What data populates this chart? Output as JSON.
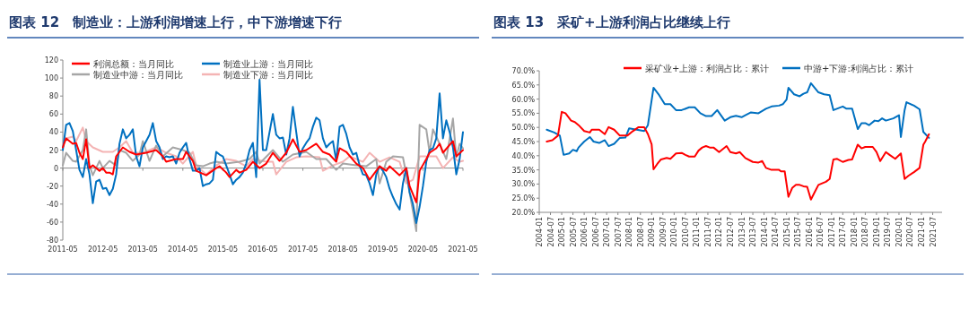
{
  "chart_data": [
    {
      "type": "line",
      "title": "图表 12　制造业：上游利润增速上行，中下游增速下行",
      "legend": "top",
      "xlim": [
        "2011-05",
        "2021-05"
      ],
      "xticks": [
        "2011-05",
        "2012-05",
        "2013-05",
        "2014-05",
        "2015-05",
        "2016-05",
        "2017-05",
        "2018-05",
        "2019-05",
        "2020-05",
        "2021-05"
      ],
      "ylim": [
        -80,
        120
      ],
      "yticks": [
        -80,
        -60,
        -40,
        -20,
        0,
        20,
        40,
        60,
        80,
        100,
        120
      ],
      "series": [
        {
          "name": "利润总额：当月同比",
          "color": "#ff0000",
          "x": [
            "2011-05",
            "2011-06",
            "2011-08",
            "2011-09",
            "2011-10",
            "2011-11",
            "2011-12",
            "2012-01",
            "2012-02",
            "2012-04",
            "2012-05",
            "2012-06",
            "2012-07",
            "2012-08",
            "2012-09",
            "2012-11",
            "2013-01",
            "2013-03",
            "2013-06",
            "2013-09",
            "2013-11",
            "2013-12",
            "2014-03",
            "2014-05",
            "2014-06",
            "2014-08",
            "2014-09",
            "2014-12",
            "2015-03",
            "2015-04",
            "2015-06",
            "2015-07",
            "2015-09",
            "2015-10",
            "2015-12",
            "2016-02",
            "2016-04",
            "2016-06",
            "2016-08",
            "2016-10",
            "2016-12",
            "2017-02",
            "2017-04",
            "2017-06",
            "2017-09",
            "2017-11",
            "2018-01",
            "2018-03",
            "2018-04",
            "2018-06",
            "2018-09",
            "2018-11",
            "2019-01",
            "2019-04",
            "2019-06",
            "2019-07",
            "2019-10",
            "2019-12",
            "2020-01",
            "2020-03",
            "2020-04",
            "2020-06",
            "2020-07",
            "2020-09",
            "2020-10",
            "2020-11",
            "2021-02",
            "2021-03",
            "2021-05"
          ],
          "values": [
            23,
            33,
            27,
            28,
            17,
            10,
            32,
            0,
            3,
            -3,
            0,
            -5,
            -5,
            -7,
            13,
            23,
            18,
            15,
            17,
            20,
            13,
            7,
            10,
            10,
            18,
            8,
            -3,
            -8,
            0,
            2,
            -5,
            -10,
            -2,
            -5,
            -2,
            7,
            0,
            5,
            17,
            8,
            17,
            32,
            18,
            20,
            27,
            18,
            15,
            7,
            22,
            18,
            5,
            0,
            -13,
            2,
            -3,
            2,
            -8,
            0,
            -20,
            -38,
            -3,
            10,
            17,
            22,
            27,
            17,
            30,
            13,
            20
          ]
        },
        {
          "name": "制造业上游：当月同比",
          "color": "#0070c0",
          "x": [
            "2011-05",
            "2011-06",
            "2011-07",
            "2011-08",
            "2011-09",
            "2011-10",
            "2011-11",
            "2011-12",
            "2012-01",
            "2012-02",
            "2012-03",
            "2012-04",
            "2012-05",
            "2012-06",
            "2012-07",
            "2012-08",
            "2012-09",
            "2012-10",
            "2012-11",
            "2012-12",
            "2013-01",
            "2013-02",
            "2013-03",
            "2013-04",
            "2013-05",
            "2013-06",
            "2013-07",
            "2013-08",
            "2013-09",
            "2013-10",
            "2013-11",
            "2013-12",
            "2014-01",
            "2014-02",
            "2014-03",
            "2014-04",
            "2014-05",
            "2014-06",
            "2014-07",
            "2014-08",
            "2014-09",
            "2014-10",
            "2014-11",
            "2014-12",
            "2015-01",
            "2015-02",
            "2015-03",
            "2015-04",
            "2015-05",
            "2015-06",
            "2015-07",
            "2015-08",
            "2015-09",
            "2015-10",
            "2015-11",
            "2015-12",
            "2016-01",
            "2016-02",
            "2016-03",
            "2016-04",
            "2016-05",
            "2016-06",
            "2016-07",
            "2016-08",
            "2016-09",
            "2016-10",
            "2016-11",
            "2016-12",
            "2017-01",
            "2017-02",
            "2017-03",
            "2017-04",
            "2017-05",
            "2017-06",
            "2017-07",
            "2017-08",
            "2017-09",
            "2017-10",
            "2017-11",
            "2017-12",
            "2018-01",
            "2018-02",
            "2018-03",
            "2018-04",
            "2018-05",
            "2018-06",
            "2018-07",
            "2018-08",
            "2018-09",
            "2018-10",
            "2018-11",
            "2018-12",
            "2019-01",
            "2019-02",
            "2019-03",
            "2019-04",
            "2019-05",
            "2019-06",
            "2019-07",
            "2019-08",
            "2019-09",
            "2019-10",
            "2019-11",
            "2019-12",
            "2020-01",
            "2020-02",
            "2020-03",
            "2020-04",
            "2020-05",
            "2020-06",
            "2020-07",
            "2020-08",
            "2020-09",
            "2020-10",
            "2020-11",
            "2020-12",
            "2021-01",
            "2021-02",
            "2021-03",
            "2021-04",
            "2021-05"
          ],
          "values": [
            20,
            48,
            50,
            41,
            20,
            -2,
            -10,
            10,
            -7,
            -39,
            -15,
            -13,
            -23,
            -22,
            -30,
            -23,
            -7,
            27,
            43,
            33,
            37,
            43,
            13,
            2,
            23,
            30,
            37,
            50,
            30,
            23,
            10,
            13,
            12,
            13,
            5,
            17,
            23,
            28,
            10,
            -3,
            -3,
            0,
            -20,
            -18,
            -17,
            -13,
            18,
            15,
            13,
            3,
            -7,
            -18,
            -13,
            -10,
            -5,
            5,
            20,
            28,
            -10,
            98,
            20,
            20,
            40,
            60,
            37,
            33,
            34,
            15,
            33,
            68,
            40,
            13,
            22,
            28,
            33,
            46,
            56,
            53,
            33,
            23,
            27,
            30,
            8,
            46,
            48,
            38,
            23,
            15,
            17,
            3,
            -7,
            -8,
            -17,
            -30,
            -7,
            2,
            -3,
            -10,
            -23,
            -32,
            -40,
            -46,
            -17,
            0,
            -27,
            -40,
            -61,
            -43,
            -20,
            7,
            20,
            22,
            33,
            83,
            33,
            53,
            40,
            23,
            -7,
            10,
            40
          ]
        },
        {
          "name": "制造业中游：当月同比",
          "color": "#a6a6a6",
          "x": [
            "2011-05",
            "2011-06",
            "2011-08",
            "2011-09",
            "2011-11",
            "2011-12",
            "2012-01",
            "2012-02",
            "2012-04",
            "2012-05",
            "2012-07",
            "2012-09",
            "2012-10",
            "2012-12",
            "2013-02",
            "2013-04",
            "2013-05",
            "2013-07",
            "2013-09",
            "2013-11",
            "2014-02",
            "2014-05",
            "2014-07",
            "2014-09",
            "2014-11",
            "2015-01",
            "2015-03",
            "2015-06",
            "2015-10",
            "2016-01",
            "2016-03",
            "2016-04",
            "2016-08",
            "2016-11",
            "2017-02",
            "2017-06",
            "2017-09",
            "2017-12",
            "2018-03",
            "2018-05",
            "2018-09",
            "2018-12",
            "2019-03",
            "2019-04",
            "2019-06",
            "2019-08",
            "2019-11",
            "2019-12",
            "2020-02",
            "2020-03",
            "2020-04",
            "2020-06",
            "2020-07",
            "2020-08",
            "2020-10",
            "2020-12",
            "2021-02",
            "2021-03",
            "2021-04",
            "2021-05"
          ],
          "values": [
            3,
            17,
            8,
            7,
            20,
            43,
            3,
            -8,
            8,
            0,
            8,
            3,
            20,
            17,
            8,
            15,
            30,
            8,
            25,
            13,
            23,
            20,
            17,
            3,
            2,
            5,
            7,
            5,
            7,
            10,
            18,
            5,
            20,
            7,
            15,
            18,
            10,
            10,
            -2,
            5,
            3,
            2,
            10,
            -17,
            7,
            13,
            12,
            -7,
            -48,
            -70,
            48,
            43,
            17,
            43,
            27,
            10,
            55,
            12,
            27,
            22
          ]
        },
        {
          "name": "制造业下游：当月同比",
          "color": "#f4b4b4",
          "x": [
            "2011-05",
            "2011-06",
            "2011-08",
            "2011-09",
            "2011-11",
            "2011-12",
            "2012-02",
            "2012-05",
            "2012-06",
            "2012-08",
            "2012-10",
            "2012-12",
            "2013-02",
            "2013-05",
            "2013-09",
            "2013-12",
            "2014-03",
            "2014-05",
            "2014-08",
            "2014-09",
            "2014-12",
            "2015-03",
            "2015-06",
            "2015-09",
            "2015-12",
            "2016-02",
            "2016-06",
            "2016-08",
            "2016-09",
            "2016-12",
            "2017-03",
            "2017-06",
            "2017-10",
            "2017-11",
            "2018-02",
            "2018-05",
            "2018-07",
            "2018-11",
            "2019-01",
            "2019-04",
            "2019-07",
            "2019-10",
            "2019-12",
            "2020-02",
            "2020-04",
            "2020-07",
            "2020-09",
            "2020-11",
            "2021-02",
            "2021-04",
            "2021-05"
          ],
          "values": [
            27,
            33,
            35,
            30,
            45,
            30,
            23,
            18,
            18,
            18,
            23,
            30,
            17,
            17,
            23,
            17,
            13,
            5,
            18,
            3,
            -7,
            3,
            10,
            8,
            2,
            10,
            7,
            7,
            -7,
            7,
            12,
            13,
            12,
            -3,
            3,
            7,
            13,
            7,
            17,
            7,
            12,
            7,
            -17,
            -13,
            13,
            13,
            13,
            0,
            12,
            7,
            8
          ]
        }
      ]
    },
    {
      "type": "line",
      "title": "图表 13　采矿+上游利润占比继续上行",
      "legend": "top",
      "xlim": [
        "2004-01",
        "2021-12"
      ],
      "xticks": [
        "2004-01",
        "2004-07",
        "2005-01",
        "2005-07",
        "2006-01",
        "2006-07",
        "2007-01",
        "2007-07",
        "2008-01",
        "2008-07",
        "2009-01",
        "2009-07",
        "2010-01",
        "2010-07",
        "2011-01",
        "2011-07",
        "2012-01",
        "2012-07",
        "2013-01",
        "2013-07",
        "2014-01",
        "2014-07",
        "2015-01",
        "2015-07",
        "2016-01",
        "2016-07",
        "2017-01",
        "2017-07",
        "2018-01",
        "2018-07",
        "2019-01",
        "2019-07",
        "2020-01",
        "2020-07",
        "2021-01",
        "2021-07"
      ],
      "ylim": [
        20,
        70
      ],
      "yticks": [
        {
          "value": 20,
          "label": "20.0%"
        },
        {
          "value": 25,
          "label": "25.0%"
        },
        {
          "value": 30,
          "label": "30.0%"
        },
        {
          "value": 35,
          "label": "35.0%"
        },
        {
          "value": 40,
          "label": "40.0%"
        },
        {
          "value": 45,
          "label": "45.0%"
        },
        {
          "value": 50,
          "label": "50.0%"
        },
        {
          "value": 55,
          "label": "55.0%"
        },
        {
          "value": 60,
          "label": "60.0%"
        },
        {
          "value": 65,
          "label": "65.0%"
        },
        {
          "value": 70,
          "label": "70.0%"
        }
      ],
      "series": [
        {
          "name": "采矿业+上游：利润占比：累计",
          "color": "#ff0000",
          "x": [
            "2004-05",
            "2004-08",
            "2004-11",
            "2005-01",
            "2005-03",
            "2005-06",
            "2005-08",
            "2005-10",
            "2006-01",
            "2006-04",
            "2006-05",
            "2006-09",
            "2006-12",
            "2007-02",
            "2007-05",
            "2007-08",
            "2007-12",
            "2008-03",
            "2008-06",
            "2008-09",
            "2008-11",
            "2009-01",
            "2009-02",
            "2009-04",
            "2009-06",
            "2009-09",
            "2009-11",
            "2010-02",
            "2010-05",
            "2010-07",
            "2010-09",
            "2010-12",
            "2011-02",
            "2011-04",
            "2011-06",
            "2011-08",
            "2011-10",
            "2012-01",
            "2012-05",
            "2012-07",
            "2012-10",
            "2012-12",
            "2013-03",
            "2013-07",
            "2013-10",
            "2013-12",
            "2014-02",
            "2014-05",
            "2014-09",
            "2014-10",
            "2014-12",
            "2015-02",
            "2015-04",
            "2015-06",
            "2015-08",
            "2015-10",
            "2015-12",
            "2016-02",
            "2016-04",
            "2016-06",
            "2016-10",
            "2016-12",
            "2017-02",
            "2017-04",
            "2017-07",
            "2017-10",
            "2017-12",
            "2018-03",
            "2018-05",
            "2018-07",
            "2018-11",
            "2019-01",
            "2019-03",
            "2019-06",
            "2019-08",
            "2019-11",
            "2020-02",
            "2020-04",
            "2020-06",
            "2020-09",
            "2020-12",
            "2021-02",
            "2021-03",
            "2021-05"
          ],
          "values": [
            45.0,
            45.5,
            47.1,
            55.5,
            55.0,
            52.4,
            51.9,
            50.8,
            48.7,
            48.2,
            49.2,
            49.2,
            47.6,
            50.1,
            49.2,
            47.1,
            47.1,
            48.7,
            50.1,
            50.1,
            47.6,
            44.0,
            35.2,
            37.1,
            38.7,
            39.2,
            38.9,
            40.8,
            41.0,
            40.3,
            39.7,
            39.7,
            41.8,
            42.9,
            43.4,
            42.9,
            42.9,
            41.3,
            43.4,
            41.3,
            40.8,
            41.3,
            39.2,
            37.8,
            37.6,
            38.1,
            35.7,
            35.0,
            35.0,
            34.5,
            34.5,
            25.5,
            28.6,
            29.7,
            29.7,
            29.2,
            29.0,
            24.5,
            27.1,
            29.7,
            30.8,
            31.8,
            38.7,
            38.9,
            37.8,
            38.5,
            38.7,
            43.9,
            42.6,
            43.1,
            43.1,
            41.3,
            38.1,
            41.3,
            40.3,
            38.9,
            40.8,
            31.8,
            32.9,
            34.2,
            35.7,
            43.9,
            45.0,
            47.6
          ]
        },
        {
          "name": "中游+下游:利润占比：累计",
          "color": "#0070c0",
          "x": [
            "2004-05",
            "2004-09",
            "2004-12",
            "2005-02",
            "2005-05",
            "2005-07",
            "2005-09",
            "2005-10",
            "2006-01",
            "2006-04",
            "2006-06",
            "2006-09",
            "2006-12",
            "2007-02",
            "2007-05",
            "2007-08",
            "2007-11",
            "2008-01",
            "2008-05",
            "2008-09",
            "2008-11",
            "2009-02",
            "2009-05",
            "2009-08",
            "2009-11",
            "2010-02",
            "2010-05",
            "2010-09",
            "2010-12",
            "2011-03",
            "2011-06",
            "2011-09",
            "2011-12",
            "2012-04",
            "2012-07",
            "2012-10",
            "2013-01",
            "2013-03",
            "2013-06",
            "2013-10",
            "2014-02",
            "2014-05",
            "2014-09",
            "2014-11",
            "2015-01",
            "2015-02",
            "2015-05",
            "2015-08",
            "2015-10",
            "2015-12",
            "2016-02",
            "2016-06",
            "2016-09",
            "2016-12",
            "2017-02",
            "2017-07",
            "2017-09",
            "2017-12",
            "2018-03",
            "2018-05",
            "2018-07",
            "2018-09",
            "2018-12",
            "2019-02",
            "2019-04",
            "2019-06",
            "2019-10",
            "2020-01",
            "2020-02",
            "2020-04",
            "2020-05",
            "2020-09",
            "2020-12",
            "2021-02",
            "2021-05"
          ],
          "values": [
            49.2,
            48.2,
            47.1,
            40.3,
            40.8,
            42.1,
            41.6,
            42.9,
            45.0,
            46.6,
            45.0,
            44.5,
            45.5,
            43.4,
            44.2,
            46.3,
            46.4,
            49.7,
            49.2,
            48.7,
            50.8,
            64.0,
            61.4,
            58.2,
            58.2,
            56.1,
            56.1,
            57.1,
            57.1,
            55.0,
            54.0,
            54.0,
            56.1,
            52.4,
            53.6,
            54.1,
            53.6,
            54.3,
            55.3,
            55.0,
            56.6,
            57.4,
            57.7,
            58.2,
            59.8,
            64.0,
            61.7,
            61.0,
            61.9,
            62.4,
            65.6,
            62.4,
            61.7,
            61.4,
            56.1,
            57.4,
            56.6,
            56.6,
            49.4,
            51.5,
            51.5,
            50.8,
            52.4,
            52.2,
            53.2,
            52.4,
            53.2,
            54.3,
            46.6,
            56.1,
            58.9,
            57.7,
            56.4,
            48.4,
            46.3
          ]
        }
      ]
    }
  ]
}
